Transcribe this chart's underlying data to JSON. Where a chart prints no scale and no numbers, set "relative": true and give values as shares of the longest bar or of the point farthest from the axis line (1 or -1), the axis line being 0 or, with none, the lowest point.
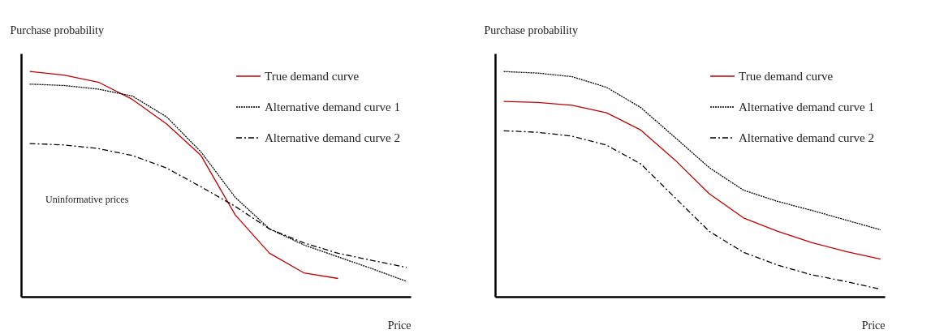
{
  "chart_data": [
    {
      "type": "line",
      "relative": true,
      "xlabel": "Price",
      "ylabel": "Purchase probability",
      "legend": "top right",
      "grid": false,
      "annotations": [
        "Uninformative prices"
      ],
      "categories": [
        null,
        null,
        null,
        null,
        null,
        null,
        null,
        null,
        null,
        null,
        null,
        null
      ],
      "series": [
        {
          "name": "True demand curve",
          "color": "#c00000",
          "line_style": "solid",
          "values": [
            1.0,
            0.984,
            0.953,
            0.876,
            0.767,
            0.627,
            0.363,
            0.193,
            0.106,
            0.081,
            null,
            null
          ]
        },
        {
          "name": "Alternative demand curve 1",
          "color": "#000000",
          "line_style": "dotted",
          "values": [
            0.944,
            0.938,
            0.922,
            0.891,
            0.798,
            0.643,
            0.441,
            0.301,
            0.23,
            0.177,
            0.124,
            0.068
          ]
        },
        {
          "name": "Alternative demand curve 2",
          "color": "#000000",
          "line_style": "dashed",
          "values": [
            0.68,
            0.674,
            0.658,
            0.627,
            0.571,
            0.488,
            0.401,
            0.301,
            0.239,
            0.193,
            0.161,
            0.13
          ]
        }
      ]
    },
    {
      "type": "line",
      "relative": true,
      "xlabel": "Price",
      "ylabel": "Purchase probability",
      "legend": "top right",
      "grid": false,
      "categories": [
        null,
        null,
        null,
        null,
        null,
        null,
        null,
        null,
        null,
        null,
        null,
        null
      ],
      "series": [
        {
          "name": "True demand curve",
          "color": "#c00000",
          "line_style": "solid",
          "values": [
            0.867,
            0.863,
            0.85,
            0.817,
            0.74,
            0.607,
            0.457,
            0.35,
            0.29,
            0.24,
            0.2,
            0.167
          ]
        },
        {
          "name": "Alternative demand curve 1",
          "color": "#000000",
          "line_style": "dotted",
          "values": [
            1.0,
            0.993,
            0.977,
            0.93,
            0.84,
            0.707,
            0.573,
            0.473,
            0.423,
            0.383,
            0.34,
            0.297
          ]
        },
        {
          "name": "Alternative demand curve 2",
          "color": "#000000",
          "line_style": "dashed",
          "values": [
            0.737,
            0.73,
            0.713,
            0.673,
            0.59,
            0.44,
            0.29,
            0.197,
            0.14,
            0.097,
            0.067,
            0.033
          ]
        }
      ]
    }
  ]
}
